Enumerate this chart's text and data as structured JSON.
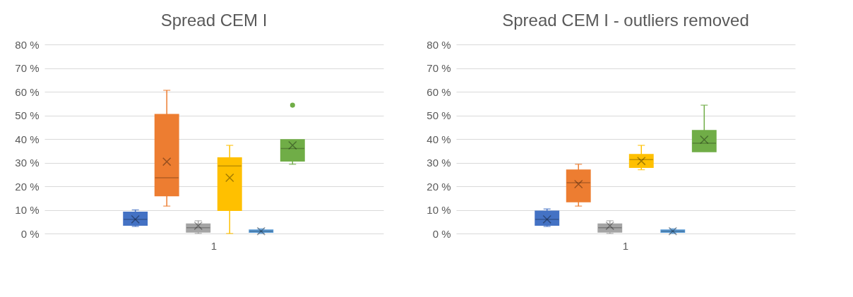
{
  "chart_data": [
    {
      "type": "box",
      "title": "Spread CEM I",
      "categories": [
        "1"
      ],
      "ylim": [
        0,
        80
      ],
      "yticks": [
        {
          "value": 0,
          "label": "0 %"
        },
        {
          "value": 10,
          "label": "10 %"
        },
        {
          "value": 20,
          "label": "20 %"
        },
        {
          "value": 30,
          "label": "30 %"
        },
        {
          "value": 40,
          "label": "40 %"
        },
        {
          "value": 50,
          "label": "50 %"
        },
        {
          "value": 60,
          "label": "60 %"
        },
        {
          "value": 70,
          "label": "70 %"
        },
        {
          "value": 80,
          "label": "80 %"
        }
      ],
      "grid": "y",
      "legend": false,
      "series": [
        {
          "color": "#4472c4",
          "boxes": [
            {
              "low": 3,
              "q1": 3.5,
              "median": 6,
              "q3": 9,
              "high": 10,
              "mean": 6
            }
          ]
        },
        {
          "color": "#ed7d31",
          "boxes": [
            {
              "low": 11.6,
              "q1": 16,
              "median": 23.6,
              "q3": 50.4,
              "high": 60.6,
              "mean": 30.4
            }
          ]
        },
        {
          "color": "#a5a5a5",
          "boxes": [
            {
              "low": 0,
              "q1": 0.6,
              "median": 2.5,
              "q3": 4,
              "high": 5.4,
              "mean": 3.3
            }
          ]
        },
        {
          "color": "#ffc000",
          "boxes": [
            {
              "low": 0,
              "q1": 9.8,
              "median": 28.6,
              "q3": 32,
              "high": 37.3,
              "mean": 23.6
            }
          ]
        },
        {
          "color": "#5b9bd5",
          "boxes": [
            {
              "low": 0,
              "q1": 0.5,
              "median": 1,
              "q3": 1.5,
              "high": 2,
              "mean": 1
            }
          ]
        },
        {
          "color": "#70ad47",
          "boxes": [
            {
              "low": 29.3,
              "q1": 30.7,
              "median": 36,
              "q3": 39.7,
              "high": 39.7,
              "mean": 37.3,
              "outliers": [
                54.3
              ]
            }
          ]
        }
      ]
    },
    {
      "type": "box",
      "title": "Spread CEM I - outliers removed",
      "categories": [
        "1"
      ],
      "ylim": [
        0,
        80
      ],
      "yticks": [
        {
          "value": 0,
          "label": "0 %"
        },
        {
          "value": 10,
          "label": "10 %"
        },
        {
          "value": 20,
          "label": "20 %"
        },
        {
          "value": 30,
          "label": "30 %"
        },
        {
          "value": 40,
          "label": "40 %"
        },
        {
          "value": 50,
          "label": "50 %"
        },
        {
          "value": 60,
          "label": "60 %"
        },
        {
          "value": 70,
          "label": "70 %"
        },
        {
          "value": 80,
          "label": "80 %"
        }
      ],
      "grid": "y",
      "legend": false,
      "series": [
        {
          "color": "#4472c4",
          "boxes": [
            {
              "low": 3,
              "q1": 3.5,
              "median": 6,
              "q3": 9.5,
              "high": 10.4,
              "mean": 6
            }
          ]
        },
        {
          "color": "#ed7d31",
          "boxes": [
            {
              "low": 11.6,
              "q1": 13.4,
              "median": 21.5,
              "q3": 26.9,
              "high": 29.3,
              "mean": 20.9
            }
          ]
        },
        {
          "color": "#a5a5a5",
          "boxes": [
            {
              "low": 0,
              "q1": 0.6,
              "median": 2.5,
              "q3": 4,
              "high": 5.4,
              "mean": 3.3
            }
          ]
        },
        {
          "color": "#ffc000",
          "boxes": [
            {
              "low": 27,
              "q1": 28,
              "median": 31.3,
              "q3": 33.4,
              "high": 37.3,
              "mean": 30.7
            }
          ]
        },
        {
          "color": "#5b9bd5",
          "boxes": [
            {
              "low": 0,
              "q1": 0.5,
              "median": 1,
              "q3": 1.5,
              "high": 2,
              "mean": 1
            }
          ]
        },
        {
          "color": "#70ad47",
          "boxes": [
            {
              "low": 34.6,
              "q1": 34.6,
              "median": 38.2,
              "q3": 43.6,
              "high": 54.3,
              "mean": 39.7
            }
          ]
        }
      ]
    }
  ]
}
